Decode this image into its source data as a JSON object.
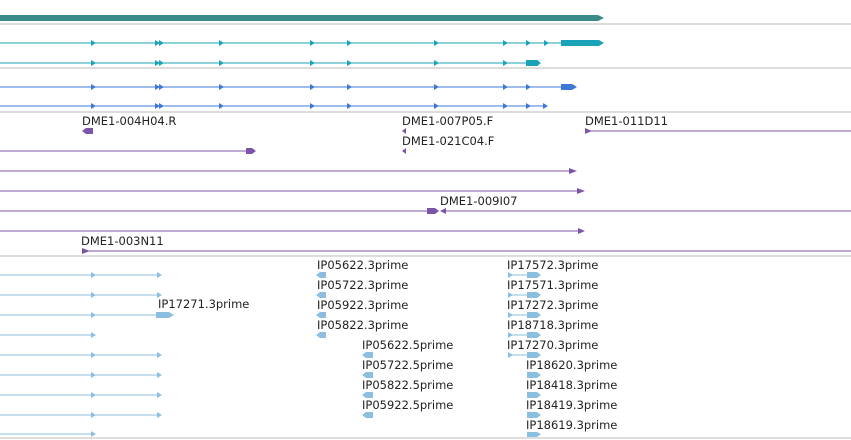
{
  "colors": {
    "gene": "#3a8a8a",
    "transcript_primary": "#1aa3b8",
    "transcript_secondary": "#3c78d8",
    "clone": "#7d55a8",
    "est": "#8cbfdf",
    "separator": "#bbbbbb"
  },
  "clones": {
    "labels": [
      {
        "id": "clone-004H04",
        "text": "DME1-004H04.R"
      },
      {
        "id": "clone-007P05",
        "text": "DME1-007P05.F"
      },
      {
        "id": "clone-011D11",
        "text": "DME1-011D11"
      },
      {
        "id": "clone-021C04",
        "text": "DME1-021C04.F"
      },
      {
        "id": "clone-009I07",
        "text": "DME1-009I07"
      },
      {
        "id": "clone-003N11",
        "text": "DME1-003N11"
      }
    ]
  },
  "ests": {
    "labels": [
      {
        "id": "est-17271",
        "text": "IP17271.3prime"
      },
      {
        "id": "est-05622-3",
        "text": "IP05622.3prime"
      },
      {
        "id": "est-05722-3",
        "text": "IP05722.3prime"
      },
      {
        "id": "est-05922-3",
        "text": "IP05922.3prime"
      },
      {
        "id": "est-05822-3",
        "text": "IP05822.3prime"
      },
      {
        "id": "est-05622-5",
        "text": "IP05622.5prime"
      },
      {
        "id": "est-05722-5",
        "text": "IP05722.5prime"
      },
      {
        "id": "est-05822-5",
        "text": "IP05822.5prime"
      },
      {
        "id": "est-05922-5",
        "text": "IP05922.5prime"
      },
      {
        "id": "est-17572",
        "text": "IP17572.3prime"
      },
      {
        "id": "est-17571",
        "text": "IP17571.3prime"
      },
      {
        "id": "est-17272",
        "text": "IP17272.3prime"
      },
      {
        "id": "est-18718",
        "text": "IP18718.3prime"
      },
      {
        "id": "est-17270",
        "text": "IP17270.3prime"
      },
      {
        "id": "est-18620",
        "text": "IP18620.3prime"
      },
      {
        "id": "est-18418",
        "text": "IP18418.3prime"
      },
      {
        "id": "est-18419",
        "text": "IP18419.3prime"
      },
      {
        "id": "est-18619",
        "text": "IP18619.3prime"
      }
    ]
  }
}
